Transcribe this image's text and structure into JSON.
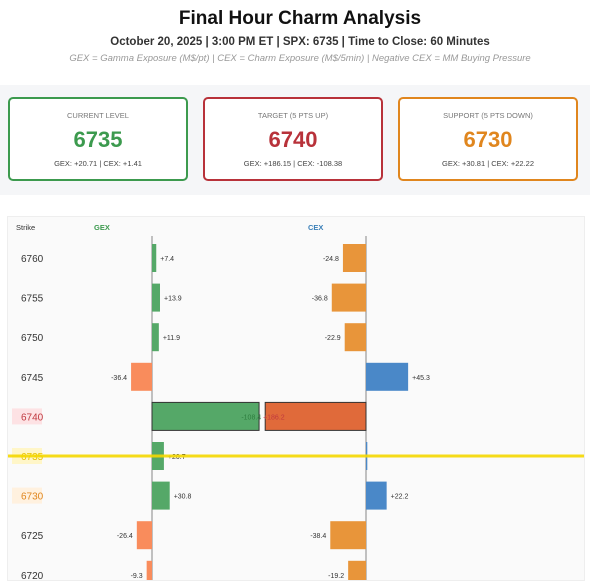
{
  "title": "Final Hour Charm Analysis",
  "subtitle": "October 20, 2025 | 3:00 PM ET | SPX: 6735 | Time to Close: 60 Minutes",
  "legend_note": "GEX = Gamma Exposure (M$/pt) | CEX = Charm Exposure (M$/5min) | Negative CEX = MM Buying Pressure",
  "cards": [
    {
      "label": "CURRENT LEVEL",
      "value": "6735",
      "detail": "GEX: +20.71 | CEX: +1.41",
      "color": "#3c9a4e"
    },
    {
      "label": "TARGET (5 PTS UP)",
      "value": "6740",
      "detail": "GEX: +186.15 | CEX: -108.38",
      "color": "#b8323a"
    },
    {
      "label": "SUPPORT (5 PTS DOWN)",
      "value": "6730",
      "detail": "GEX: +30.81 | CEX: +22.22",
      "color": "#e0861e"
    }
  ],
  "chart_data": {
    "type": "bar",
    "orientation": "horizontal",
    "headers": {
      "strike": "Strike",
      "gex": "GEX",
      "cex": "CEX"
    },
    "categories": [
      "6760",
      "6755",
      "6750",
      "6745",
      "6740",
      "6735",
      "6730",
      "6725",
      "6720"
    ],
    "series": [
      {
        "name": "GEX",
        "values": [
          7.4,
          13.9,
          11.9,
          -36.4,
          186.2,
          20.7,
          30.8,
          -26.4,
          -9.3
        ],
        "labels": [
          "+7.4",
          "+13.9",
          "+11.9",
          "-36.4",
          "+186.2",
          "+20.7",
          "+30.8",
          "-26.4",
          "-9.3"
        ]
      },
      {
        "name": "CEX",
        "values": [
          -24.8,
          -36.8,
          -22.9,
          45.3,
          -108.4,
          1.4,
          22.2,
          -38.4,
          -19.2
        ],
        "labels": [
          "-24.8",
          "-36.8",
          "-22.9",
          "+45.3",
          "-108.4",
          "",
          "+22.2",
          "-38.4",
          "-19.2"
        ]
      }
    ],
    "highlight": {
      "current": "6735",
      "target": "6740",
      "support": "6730"
    },
    "colors": {
      "gex_pos": "#55a868",
      "gex_neg": "#f98c5c",
      "cex_neg": "#e8953a",
      "cex_pos": "#4a88c8",
      "target_cex": "#e06a3a",
      "current_line": "#f5d800"
    }
  }
}
